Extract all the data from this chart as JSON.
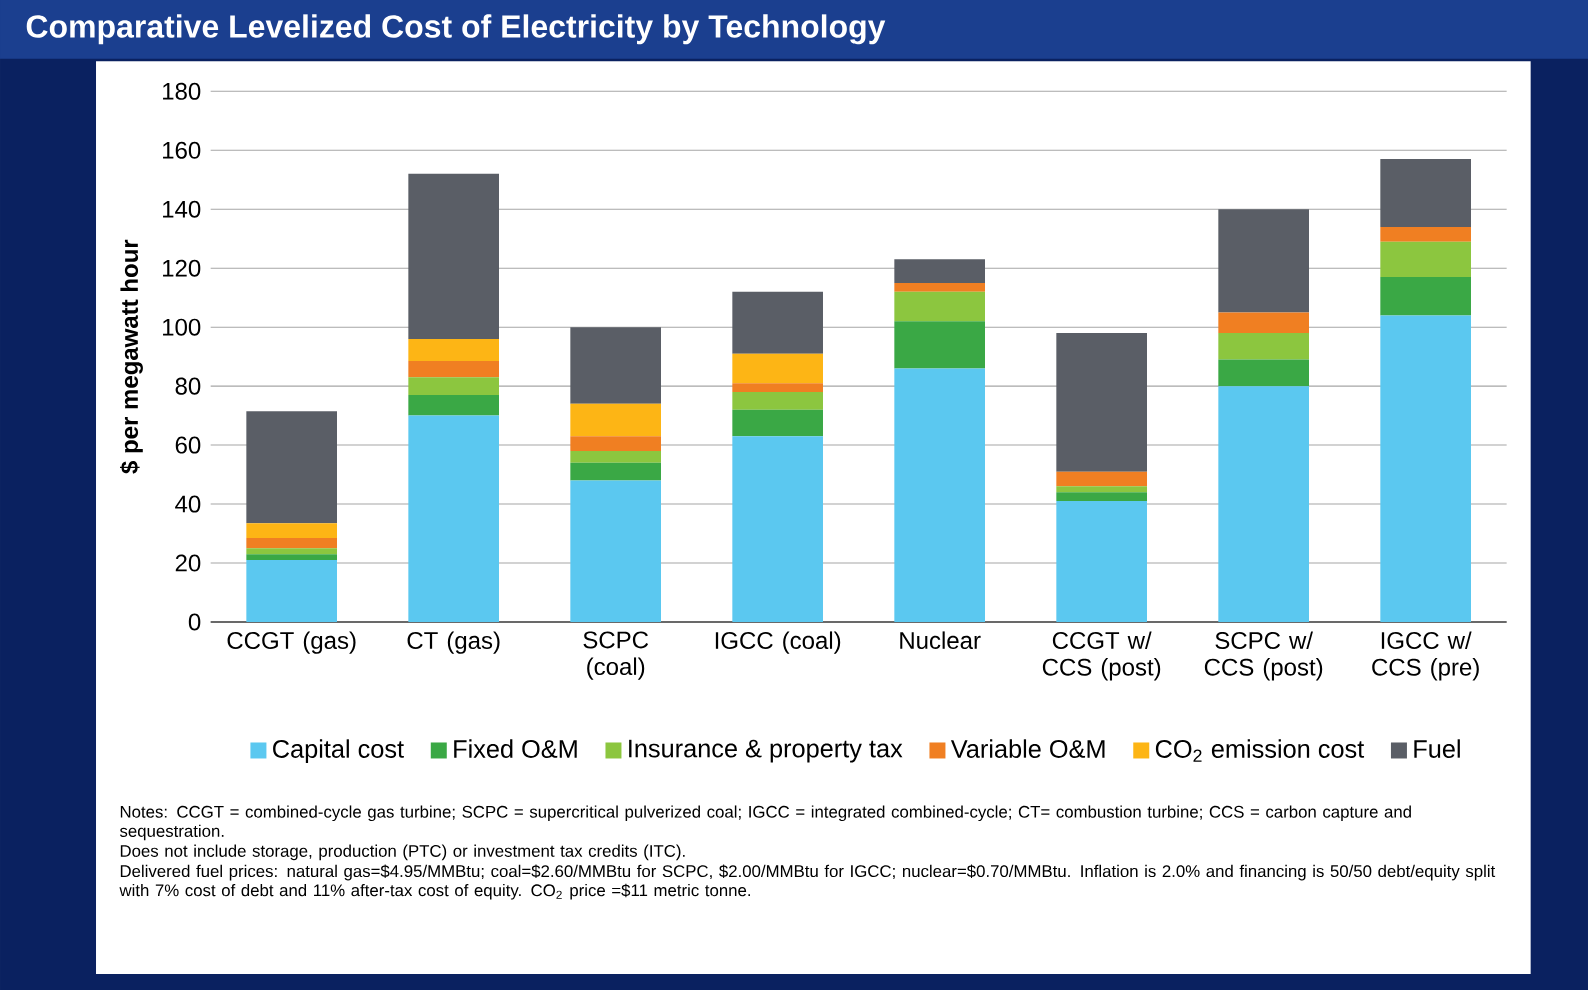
{
  "chart_data": {
    "type": "bar",
    "stacked": true,
    "title": "Comparative Levelized Cost of Electricity by  Technology",
    "ylabel": "$ per megawatt hour",
    "categories": [
      "CCGT (gas)",
      "CT (gas)",
      "SCPC (coal)",
      "IGCC (coal)",
      "Nuclear",
      "CCGT w/ CCS (post)",
      "SCPC w/ CCS (post)",
      "IGCC w/ CCS (pre)"
    ],
    "series": [
      {
        "name": "Capital cost",
        "color": "#5bc8f0",
        "values": [
          21,
          70,
          48,
          63,
          86,
          41,
          80,
          104
        ]
      },
      {
        "name": "Fixed O&M",
        "color": "#3aa845",
        "values": [
          2,
          7,
          6,
          9,
          16,
          3,
          9,
          13
        ]
      },
      {
        "name": "Insurance & property tax",
        "color": "#8cc63f",
        "values": [
          2,
          6,
          4,
          6,
          10,
          2,
          9,
          12
        ]
      },
      {
        "name": "Variable O&M",
        "color": "#f07f22",
        "values": [
          3.5,
          5.5,
          5,
          3,
          3,
          5,
          7,
          5
        ]
      },
      {
        "name": "CO$_{2}$ emission cost",
        "color": "#fdb515",
        "values": [
          5,
          7.5,
          11,
          10,
          null,
          null,
          null,
          null
        ]
      },
      {
        "name": "Fuel",
        "color": "#5a5e66",
        "values": [
          38,
          56,
          26,
          21,
          8,
          47,
          35,
          23
        ]
      }
    ],
    "ylim": [
      0,
      180
    ],
    "yticks": [
      0,
      20,
      40,
      60,
      80,
      100,
      120,
      140,
      160,
      180
    ],
    "grid": "y",
    "legend": "bottom",
    "annotations": [
      "Notes: CCGT = combined-cycle gas turbine; SCPC = supercritical pulverized coal; IGCC = integrated combined-cycle; CT= combustion turbine; CCS = carbon capture and sequestration.",
      "Does not include storage, production (PTC) or investment tax credits (ITC).",
      "Delivered fuel prices: natural gas=$4.95/MMBtu; coal=$2.60/MMBtu for SCPC, $2.00/MMBtu for IGCC; nuclear=$0.70/MMBtu. Inflation is 2.0% and financing is 50/50 debt/equity split with 7% cost of debt and 11% after-tax cost of equity. CO$_{2}$ price =$11 metric tonne."
    ]
  }
}
